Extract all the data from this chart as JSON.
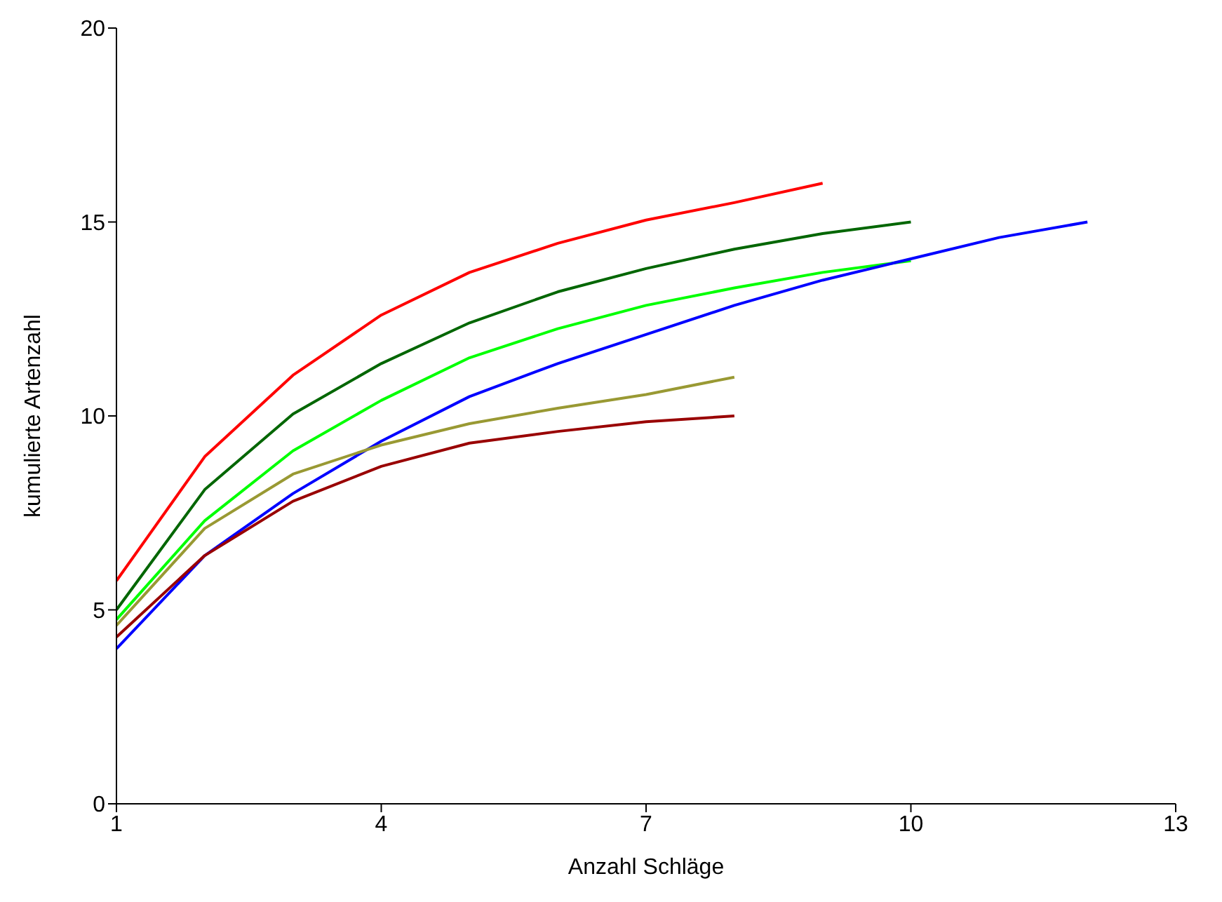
{
  "chart_data": {
    "type": "line",
    "xlabel": "Anzahl Schläge",
    "ylabel": "kumulierte Artenzahl",
    "x": [
      1,
      2,
      3,
      4,
      5,
      6,
      7,
      8,
      9,
      10,
      11,
      12
    ],
    "xlim": [
      1,
      13
    ],
    "xticks": [
      1,
      4,
      7,
      10,
      13
    ],
    "ylim": [
      0,
      20
    ],
    "yticks": [
      0,
      5,
      10,
      15,
      20
    ],
    "grid": false,
    "legend": false,
    "marker": "none",
    "line_style": "solid",
    "series": [
      {
        "color": "#ff0000",
        "values": [
          5.75,
          8.95,
          11.05,
          12.6,
          13.7,
          14.45,
          15.05,
          15.5,
          16,
          null,
          null,
          null
        ]
      },
      {
        "color": "#006600",
        "values": [
          5.0,
          8.1,
          10.05,
          11.35,
          12.4,
          13.2,
          13.8,
          14.3,
          14.7,
          15,
          null,
          null
        ]
      },
      {
        "color": "#00ff00",
        "values": [
          4.75,
          7.3,
          9.1,
          10.4,
          11.5,
          12.25,
          12.85,
          13.3,
          13.7,
          14,
          null,
          null
        ]
      },
      {
        "color": "#0000ff",
        "values": [
          4.0,
          6.4,
          8.0,
          9.35,
          10.5,
          11.35,
          12.1,
          12.85,
          13.5,
          14.05,
          14.6,
          15
        ]
      },
      {
        "color": "#999933",
        "values": [
          4.6,
          7.1,
          8.5,
          9.25,
          9.8,
          10.2,
          10.55,
          11,
          null,
          null,
          null,
          null
        ]
      },
      {
        "color": "#990000",
        "values": [
          4.3,
          6.4,
          7.8,
          8.7,
          9.3,
          9.6,
          9.85,
          10,
          null,
          null,
          null,
          null
        ]
      }
    ]
  }
}
